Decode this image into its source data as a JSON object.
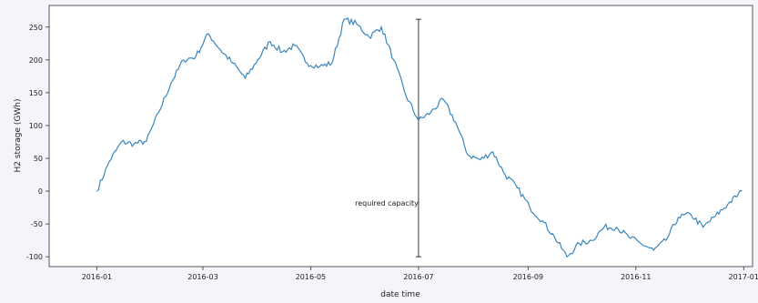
{
  "chart_data": {
    "type": "line",
    "xlabel": "date time",
    "ylabel": "H2 storage (GWh)",
    "x_ticks": [
      "2016-01",
      "2016-03",
      "2016-05",
      "2016-07",
      "2016-09",
      "2016-11",
      "2017-01"
    ],
    "y_ticks": [
      -100,
      -50,
      0,
      50,
      100,
      150,
      200,
      250
    ],
    "xlim": [
      "2015-12-05",
      "2017-01-06"
    ],
    "ylim": [
      -115,
      283
    ],
    "grid": false,
    "colors": {
      "series": "#3a86bd",
      "annotation": "#222222"
    },
    "series": [
      {
        "x": [
          "2016-01-01",
          "2016-01-08",
          "2016-01-15",
          "2016-01-22",
          "2016-01-29",
          "2016-02-05",
          "2016-02-12",
          "2016-02-19",
          "2016-02-26",
          "2016-03-04",
          "2016-03-11",
          "2016-03-18",
          "2016-03-25",
          "2016-04-01",
          "2016-04-08",
          "2016-04-15",
          "2016-04-22",
          "2016-04-29",
          "2016-05-06",
          "2016-05-13",
          "2016-05-20",
          "2016-05-27",
          "2016-06-03",
          "2016-06-10",
          "2016-06-17",
          "2016-06-24",
          "2016-07-01",
          "2016-07-08",
          "2016-07-15",
          "2016-07-22",
          "2016-07-29",
          "2016-08-05",
          "2016-08-12",
          "2016-08-19",
          "2016-08-26",
          "2016-09-02",
          "2016-09-09",
          "2016-09-16",
          "2016-09-23",
          "2016-09-30",
          "2016-10-07",
          "2016-10-14",
          "2016-10-21",
          "2016-10-28",
          "2016-11-04",
          "2016-11-11",
          "2016-11-18",
          "2016-11-25",
          "2016-12-02",
          "2016-12-09",
          "2016-12-16",
          "2016-12-23",
          "2016-12-31"
        ],
        "values": [
          0,
          45,
          75,
          72,
          76,
          120,
          165,
          200,
          205,
          240,
          215,
          195,
          172,
          200,
          228,
          212,
          222,
          195,
          190,
          195,
          262,
          255,
          235,
          250,
          200,
          145,
          108,
          120,
          140,
          105,
          55,
          48,
          60,
          25,
          5,
          -25,
          -45,
          -70,
          -100,
          -80,
          -75,
          -55,
          -55,
          -70,
          -80,
          -90,
          -75,
          -40,
          -35,
          -55,
          -38,
          -20,
          0
        ]
      }
    ],
    "annotations": [
      {
        "text": "required capacity",
        "x": "2016-07-01",
        "y_range": [
          -100,
          262
        ]
      }
    ]
  }
}
